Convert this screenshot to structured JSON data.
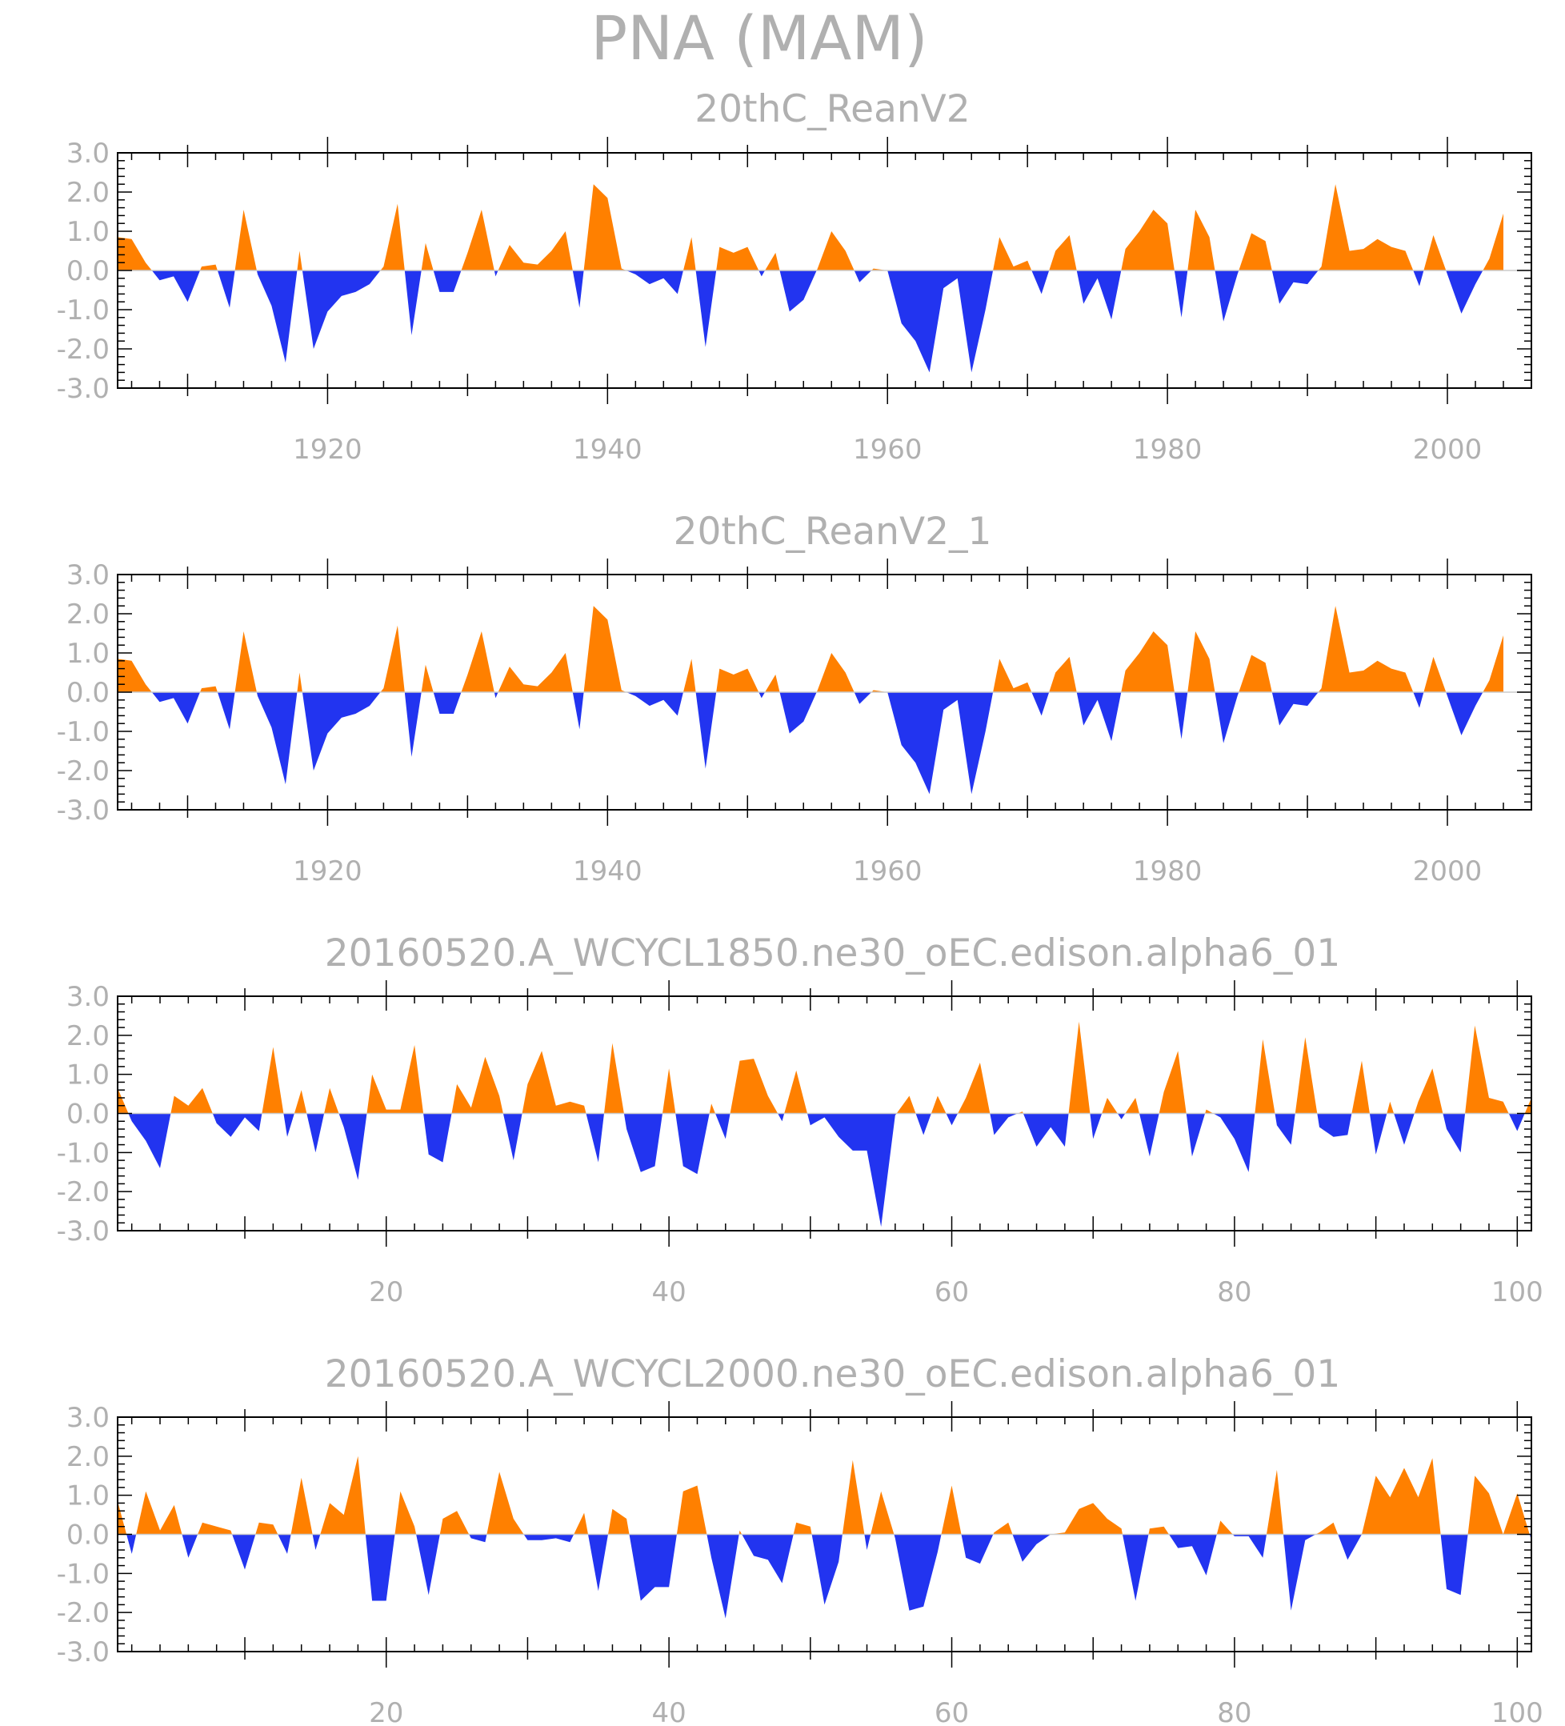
{
  "figure": {
    "title": "PNA (MAM)"
  },
  "colors": {
    "positive": "#ff8000",
    "negative": "#2234f0",
    "text": "#b0b0b0",
    "axis": "#000000"
  },
  "chart_data": [
    {
      "type": "area",
      "title": "20thC_ReanV2",
      "xlabel": "",
      "ylabel": "",
      "x_start": 1905,
      "xlim": [
        1905,
        2006
      ],
      "xticks": [
        1920,
        1940,
        1960,
        1980,
        2000
      ],
      "xtick_labels": [
        "1920",
        "1940",
        "1960",
        "1980",
        "2000"
      ],
      "ylim": [
        -3,
        3
      ],
      "yticks": [
        3,
        2,
        1,
        0,
        -1,
        -2,
        -3
      ],
      "ytick_labels": [
        "3.0",
        "2.0",
        "1.0",
        "0.0",
        "-1.0",
        "-2.0",
        "-3.0"
      ],
      "values": [
        0.85,
        0.8,
        0.2,
        -0.25,
        -0.15,
        -0.8,
        0.1,
        0.15,
        -0.95,
        1.55,
        -0.1,
        -0.9,
        -2.35,
        0.5,
        -2.0,
        -1.05,
        -0.65,
        -0.55,
        -0.35,
        0.1,
        1.7,
        -1.65,
        0.7,
        -0.55,
        -0.55,
        0.45,
        1.55,
        -0.15,
        0.65,
        0.2,
        0.15,
        0.5,
        1.0,
        -0.95,
        2.2,
        1.85,
        0.05,
        -0.1,
        -0.35,
        -0.2,
        -0.6,
        0.85,
        -1.95,
        0.6,
        0.45,
        0.6,
        -0.15,
        0.45,
        -1.05,
        -0.75,
        0.05,
        1.0,
        0.5,
        -0.3,
        0.05,
        0.0,
        -1.35,
        -1.8,
        -2.6,
        -0.45,
        -0.2,
        -2.6,
        -1.0,
        0.85,
        0.1,
        0.25,
        -0.6,
        0.5,
        0.9,
        -0.85,
        -0.2,
        -1.25,
        0.55,
        1.0,
        1.55,
        1.2,
        -1.2,
        1.55,
        0.85,
        -1.3,
        -0.1,
        0.95,
        0.75,
        -0.85,
        -0.3,
        -0.35,
        0.1,
        2.2,
        0.5,
        0.55,
        0.8,
        0.6,
        0.5,
        -0.4,
        0.9,
        -0.1,
        -1.1,
        -0.35,
        0.3,
        1.45
      ]
    },
    {
      "type": "area",
      "title": "20thC_ReanV2_1",
      "xlabel": "",
      "ylabel": "",
      "x_start": 1905,
      "xlim": [
        1905,
        2006
      ],
      "xticks": [
        1920,
        1940,
        1960,
        1980,
        2000
      ],
      "xtick_labels": [
        "1920",
        "1940",
        "1960",
        "1980",
        "2000"
      ],
      "ylim": [
        -3,
        3
      ],
      "yticks": [
        3,
        2,
        1,
        0,
        -1,
        -2,
        -3
      ],
      "ytick_labels": [
        "3.0",
        "2.0",
        "1.0",
        "0.0",
        "-1.0",
        "-2.0",
        "-3.0"
      ],
      "values": [
        0.85,
        0.8,
        0.2,
        -0.25,
        -0.15,
        -0.8,
        0.1,
        0.15,
        -0.95,
        1.55,
        -0.1,
        -0.9,
        -2.35,
        0.5,
        -2.0,
        -1.05,
        -0.65,
        -0.55,
        -0.35,
        0.1,
        1.7,
        -1.65,
        0.7,
        -0.55,
        -0.55,
        0.45,
        1.55,
        -0.15,
        0.65,
        0.2,
        0.15,
        0.5,
        1.0,
        -0.95,
        2.2,
        1.85,
        0.05,
        -0.1,
        -0.35,
        -0.2,
        -0.6,
        0.85,
        -1.95,
        0.6,
        0.45,
        0.6,
        -0.15,
        0.45,
        -1.05,
        -0.75,
        0.05,
        1.0,
        0.5,
        -0.3,
        0.05,
        0.0,
        -1.35,
        -1.8,
        -2.6,
        -0.45,
        -0.2,
        -2.6,
        -1.0,
        0.85,
        0.1,
        0.25,
        -0.6,
        0.5,
        0.9,
        -0.85,
        -0.2,
        -1.25,
        0.55,
        1.0,
        1.55,
        1.2,
        -1.2,
        1.55,
        0.85,
        -1.3,
        -0.1,
        0.95,
        0.75,
        -0.85,
        -0.3,
        -0.35,
        0.1,
        2.2,
        0.5,
        0.55,
        0.8,
        0.6,
        0.5,
        -0.4,
        0.9,
        -0.1,
        -1.1,
        -0.35,
        0.3,
        1.45
      ]
    },
    {
      "type": "area",
      "title": "20160520.A_WCYCL1850.ne30_oEC.edison.alpha6_01",
      "xlabel": "",
      "ylabel": "",
      "x_start": 1,
      "xlim": [
        1,
        101
      ],
      "xticks": [
        20,
        40,
        60,
        80,
        100
      ],
      "xtick_labels": [
        "20",
        "40",
        "60",
        "80",
        "100"
      ],
      "ylim": [
        -3,
        3
      ],
      "yticks": [
        3,
        2,
        1,
        0,
        -1,
        -2,
        -3
      ],
      "ytick_labels": [
        "3.0",
        "2.0",
        "1.0",
        "0.0",
        "-1.0",
        "-2.0",
        "-3.0"
      ],
      "values": [
        0.65,
        -0.2,
        -0.7,
        -1.4,
        0.45,
        0.2,
        0.65,
        -0.25,
        -0.6,
        -0.1,
        -0.45,
        1.7,
        -0.6,
        0.6,
        -1.0,
        0.65,
        -0.35,
        -1.7,
        1.0,
        0.1,
        0.1,
        1.75,
        -1.05,
        -1.25,
        0.75,
        0.15,
        1.45,
        0.45,
        -1.2,
        0.75,
        1.6,
        0.2,
        0.3,
        0.2,
        -1.25,
        1.8,
        -0.4,
        -1.5,
        -1.35,
        1.15,
        -1.35,
        -1.55,
        0.25,
        -0.65,
        1.35,
        1.4,
        0.45,
        -0.2,
        1.1,
        -0.3,
        -0.1,
        -0.6,
        -0.95,
        -0.95,
        -2.9,
        -0.05,
        0.45,
        -0.55,
        0.45,
        -0.3,
        0.4,
        1.3,
        -0.55,
        -0.1,
        0.05,
        -0.85,
        -0.35,
        -0.85,
        2.35,
        -0.65,
        0.4,
        -0.15,
        0.4,
        -1.1,
        0.55,
        1.6,
        -1.1,
        0.1,
        -0.1,
        -0.65,
        -1.5,
        1.9,
        -0.3,
        -0.8,
        1.95,
        -0.35,
        -0.6,
        -0.55,
        1.35,
        -1.05,
        0.3,
        -0.8,
        0.3,
        1.15,
        -0.4,
        -1.0,
        2.25,
        0.4,
        0.3,
        -0.45,
        0.4
      ]
    },
    {
      "type": "area",
      "title": "20160520.A_WCYCL2000.ne30_oEC.edison.alpha6_01",
      "xlabel": "",
      "ylabel": "",
      "x_start": 1,
      "xlim": [
        1,
        101
      ],
      "xticks": [
        20,
        40,
        60,
        80,
        100
      ],
      "xtick_labels": [
        "20",
        "40",
        "60",
        "80",
        "100"
      ],
      "ylim": [
        -3,
        3
      ],
      "yticks": [
        3,
        2,
        1,
        0,
        -1,
        -2,
        -3
      ],
      "ytick_labels": [
        "3.0",
        "2.0",
        "1.0",
        "0.0",
        "-1.0",
        "-2.0",
        "-3.0"
      ],
      "values": [
        0.85,
        -0.5,
        1.1,
        0.1,
        0.75,
        -0.6,
        0.3,
        0.2,
        0.1,
        -0.9,
        0.3,
        0.25,
        -0.5,
        1.45,
        -0.4,
        0.8,
        0.5,
        2.0,
        -1.7,
        -1.7,
        1.1,
        0.2,
        -1.55,
        0.4,
        0.6,
        -0.1,
        -0.2,
        1.6,
        0.4,
        -0.15,
        -0.15,
        -0.1,
        -0.2,
        0.55,
        -1.45,
        0.65,
        0.4,
        -1.7,
        -1.35,
        -1.35,
        1.1,
        1.25,
        -0.6,
        -2.15,
        0.1,
        -0.55,
        -0.65,
        -1.25,
        0.3,
        0.2,
        -1.8,
        -0.7,
        1.9,
        -0.4,
        1.1,
        -0.1,
        -1.95,
        -1.85,
        -0.45,
        1.25,
        -0.6,
        -0.75,
        0.05,
        0.3,
        -0.7,
        -0.25,
        0.0,
        0.05,
        0.65,
        0.8,
        0.4,
        0.15,
        -1.7,
        0.15,
        0.2,
        -0.35,
        -0.3,
        -1.05,
        0.35,
        -0.05,
        -0.05,
        -0.6,
        1.65,
        -1.95,
        -0.15,
        0.05,
        0.3,
        -0.65,
        0.0,
        1.5,
        0.95,
        1.7,
        0.95,
        1.95,
        -1.4,
        -1.55,
        1.5,
        1.05,
        0.0,
        1.05,
        -0.15
      ]
    }
  ]
}
